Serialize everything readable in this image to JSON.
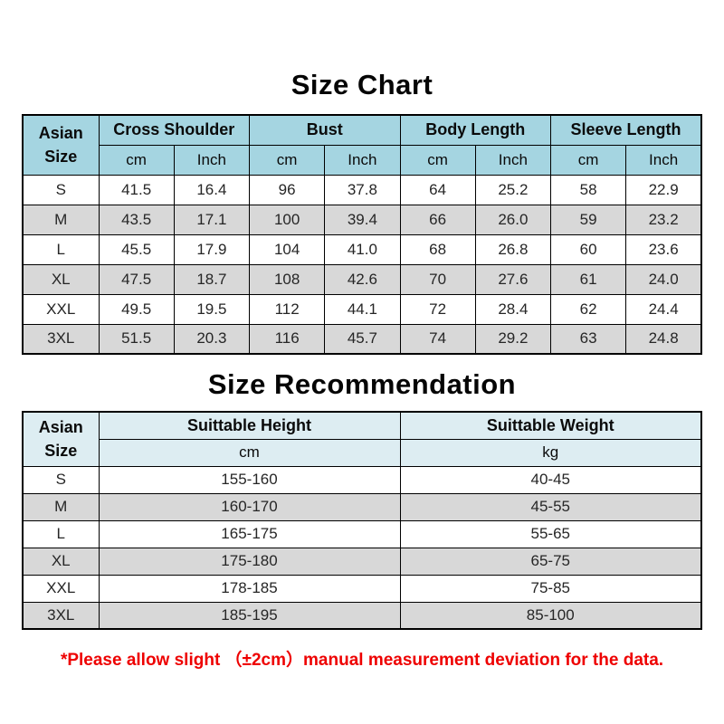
{
  "colors": {
    "header_blue": "#a5d5e1",
    "header_pale_blue": "#ddedf2",
    "row_alt_gray": "#d8d8d8",
    "border_black": "#000000",
    "note_red": "#ee0000"
  },
  "size_chart": {
    "title": "Size Chart",
    "corner_header": "Asian\nSize",
    "column_groups": [
      "Cross Shoulder",
      "Bust",
      "Body Length",
      "Sleeve Length"
    ],
    "unit_headers": [
      "cm",
      "Inch"
    ],
    "rows": [
      {
        "size": "S",
        "values": [
          "41.5",
          "16.4",
          "96",
          "37.8",
          "64",
          "25.2",
          "58",
          "22.9"
        ]
      },
      {
        "size": "M",
        "values": [
          "43.5",
          "17.1",
          "100",
          "39.4",
          "66",
          "26.0",
          "59",
          "23.2"
        ]
      },
      {
        "size": "L",
        "values": [
          "45.5",
          "17.9",
          "104",
          "41.0",
          "68",
          "26.8",
          "60",
          "23.6"
        ]
      },
      {
        "size": "XL",
        "values": [
          "47.5",
          "18.7",
          "108",
          "42.6",
          "70",
          "27.6",
          "61",
          "24.0"
        ]
      },
      {
        "size": "XXL",
        "values": [
          "49.5",
          "19.5",
          "112",
          "44.1",
          "72",
          "28.4",
          "62",
          "24.4"
        ]
      },
      {
        "size": "3XL",
        "values": [
          "51.5",
          "20.3",
          "116",
          "45.7",
          "74",
          "29.2",
          "63",
          "24.8"
        ]
      }
    ]
  },
  "size_recommendation": {
    "title": "Size Recommendation",
    "corner_header": "Asian\nSize",
    "columns": [
      {
        "label": "Suittable Height",
        "unit": "cm"
      },
      {
        "label": "Suittable Weight",
        "unit": "kg"
      }
    ],
    "rows": [
      {
        "size": "S",
        "values": [
          "155-160",
          "40-45"
        ]
      },
      {
        "size": "M",
        "values": [
          "160-170",
          "45-55"
        ]
      },
      {
        "size": "L",
        "values": [
          "165-175",
          "55-65"
        ]
      },
      {
        "size": "XL",
        "values": [
          "175-180",
          "65-75"
        ]
      },
      {
        "size": "XXL",
        "values": [
          "178-185",
          "75-85"
        ]
      },
      {
        "size": "3XL",
        "values": [
          "185-195",
          "85-100"
        ]
      }
    ]
  },
  "note": {
    "text": "*Please allow slight （±2cm）manual measurement deviation for the data."
  },
  "chart_data": [
    {
      "type": "table",
      "title": "Size Chart",
      "columns": [
        "Asian Size",
        "Cross Shoulder cm",
        "Cross Shoulder Inch",
        "Bust cm",
        "Bust Inch",
        "Body Length cm",
        "Body Length Inch",
        "Sleeve Length cm",
        "Sleeve Length Inch"
      ],
      "rows": [
        [
          "S",
          41.5,
          16.4,
          96,
          37.8,
          64,
          25.2,
          58,
          22.9
        ],
        [
          "M",
          43.5,
          17.1,
          100,
          39.4,
          66,
          26.0,
          59,
          23.2
        ],
        [
          "L",
          45.5,
          17.9,
          104,
          41.0,
          68,
          26.8,
          60,
          23.6
        ],
        [
          "XL",
          47.5,
          18.7,
          108,
          42.6,
          70,
          27.6,
          61,
          24.0
        ],
        [
          "XXL",
          49.5,
          19.5,
          112,
          44.1,
          72,
          28.4,
          62,
          24.4
        ],
        [
          "3XL",
          51.5,
          20.3,
          116,
          45.7,
          74,
          29.2,
          63,
          24.8
        ]
      ]
    },
    {
      "type": "table",
      "title": "Size Recommendation",
      "columns": [
        "Asian Size",
        "Suittable Height cm",
        "Suittable Weight kg"
      ],
      "rows": [
        [
          "S",
          "155-160",
          "40-45"
        ],
        [
          "M",
          "160-170",
          "45-55"
        ],
        [
          "L",
          "165-175",
          "55-65"
        ],
        [
          "XL",
          "175-180",
          "65-75"
        ],
        [
          "XXL",
          "178-185",
          "75-85"
        ],
        [
          "3XL",
          "185-195",
          "85-100"
        ]
      ]
    }
  ]
}
